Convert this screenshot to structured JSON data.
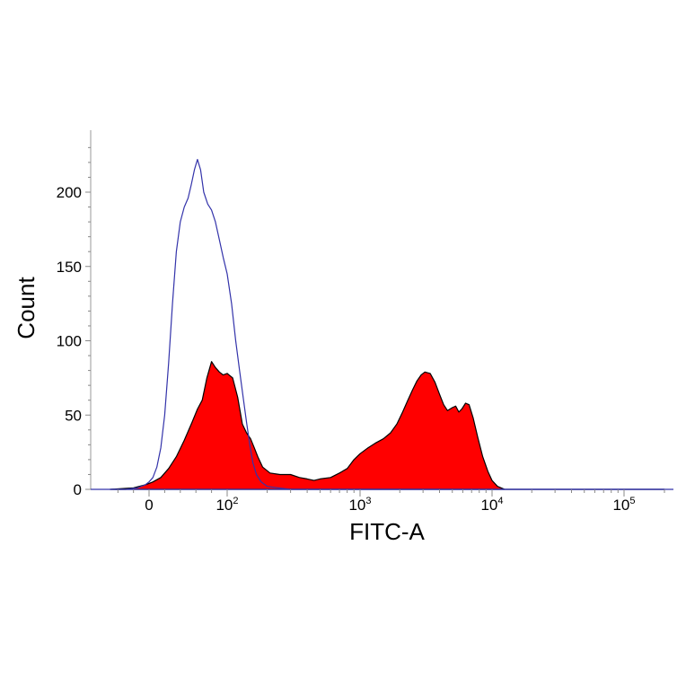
{
  "chart_data": {
    "type": "area",
    "title": "",
    "xlabel": "FITC-A",
    "ylabel": "Count",
    "x_scale": "biexponential",
    "xlim": [
      -60,
      200000
    ],
    "ylim": [
      0,
      230
    ],
    "grid": false,
    "legend": "none",
    "y_ticks": [
      {
        "value": 0,
        "label": "0"
      },
      {
        "value": 50,
        "label": "50"
      },
      {
        "value": 100,
        "label": "100"
      },
      {
        "value": 150,
        "label": "150"
      },
      {
        "value": 200,
        "label": "200"
      }
    ],
    "x_ticks": [
      {
        "value": 0,
        "base": "0",
        "exp": ""
      },
      {
        "value": 100,
        "base": "10",
        "exp": "2"
      },
      {
        "value": 1000,
        "base": "10",
        "exp": "3"
      },
      {
        "value": 10000,
        "base": "10",
        "exp": "4"
      },
      {
        "value": 100000,
        "base": "10",
        "exp": "5"
      }
    ],
    "series": [
      {
        "style": "filled",
        "fill": "#ff0000",
        "stroke": "#000000",
        "points": [
          [
            -50,
            0
          ],
          [
            -20,
            1
          ],
          [
            -5,
            3
          ],
          [
            0,
            4
          ],
          [
            5,
            5
          ],
          [
            15,
            8
          ],
          [
            25,
            14
          ],
          [
            35,
            22
          ],
          [
            45,
            33
          ],
          [
            55,
            45
          ],
          [
            62,
            54
          ],
          [
            68,
            60
          ],
          [
            74,
            75
          ],
          [
            80,
            86
          ],
          [
            85,
            82
          ],
          [
            90,
            79
          ],
          [
            95,
            77
          ],
          [
            100,
            78
          ],
          [
            110,
            75
          ],
          [
            120,
            62
          ],
          [
            130,
            44
          ],
          [
            140,
            38
          ],
          [
            150,
            34
          ],
          [
            160,
            28
          ],
          [
            170,
            22
          ],
          [
            185,
            15
          ],
          [
            210,
            11
          ],
          [
            250,
            10
          ],
          [
            300,
            10
          ],
          [
            350,
            8
          ],
          [
            400,
            7
          ],
          [
            450,
            6
          ],
          [
            500,
            7
          ],
          [
            600,
            8
          ],
          [
            700,
            11
          ],
          [
            800,
            14
          ],
          [
            900,
            20
          ],
          [
            1000,
            24
          ],
          [
            1150,
            28
          ],
          [
            1300,
            31
          ],
          [
            1500,
            34
          ],
          [
            1700,
            38
          ],
          [
            1900,
            44
          ],
          [
            2100,
            52
          ],
          [
            2300,
            60
          ],
          [
            2500,
            67
          ],
          [
            2700,
            73
          ],
          [
            2900,
            77
          ],
          [
            3100,
            79
          ],
          [
            3400,
            78
          ],
          [
            3700,
            72
          ],
          [
            4000,
            64
          ],
          [
            4300,
            57
          ],
          [
            4600,
            53
          ],
          [
            5000,
            55
          ],
          [
            5300,
            56
          ],
          [
            5600,
            52
          ],
          [
            5900,
            54
          ],
          [
            6300,
            58
          ],
          [
            6700,
            57
          ],
          [
            7200,
            48
          ],
          [
            7800,
            35
          ],
          [
            8500,
            22
          ],
          [
            9300,
            12
          ],
          [
            10000,
            6
          ],
          [
            11000,
            2
          ],
          [
            12500,
            0
          ],
          [
            200000,
            0
          ]
        ]
      },
      {
        "style": "outline",
        "stroke": "#3333aa",
        "points": [
          [
            -50,
            0
          ],
          [
            -30,
            0
          ],
          [
            -15,
            1
          ],
          [
            -5,
            3
          ],
          [
            0,
            5
          ],
          [
            5,
            8
          ],
          [
            10,
            15
          ],
          [
            15,
            28
          ],
          [
            20,
            50
          ],
          [
            25,
            85
          ],
          [
            30,
            125
          ],
          [
            35,
            160
          ],
          [
            40,
            180
          ],
          [
            45,
            190
          ],
          [
            50,
            196
          ],
          [
            54,
            205
          ],
          [
            58,
            215
          ],
          [
            62,
            222
          ],
          [
            66,
            215
          ],
          [
            70,
            200
          ],
          [
            75,
            192
          ],
          [
            80,
            188
          ],
          [
            85,
            180
          ],
          [
            90,
            168
          ],
          [
            95,
            156
          ],
          [
            100,
            145
          ],
          [
            108,
            125
          ],
          [
            116,
            100
          ],
          [
            124,
            80
          ],
          [
            132,
            62
          ],
          [
            140,
            45
          ],
          [
            148,
            30
          ],
          [
            156,
            18
          ],
          [
            166,
            10
          ],
          [
            180,
            5
          ],
          [
            200,
            2
          ],
          [
            240,
            1
          ],
          [
            300,
            0
          ],
          [
            200000,
            0
          ]
        ]
      }
    ]
  }
}
